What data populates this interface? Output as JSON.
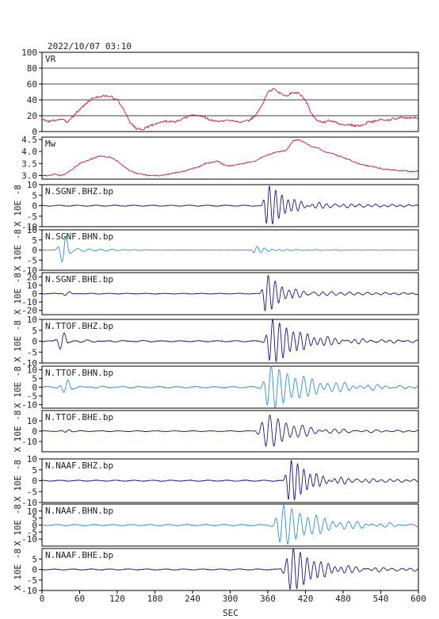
{
  "page_title": "2022/10/07 03:10",
  "x_axis": {
    "label": "SEC",
    "range": [
      0,
      600
    ],
    "ticks": [
      0,
      60,
      120,
      180,
      240,
      300,
      360,
      420,
      480,
      540,
      600
    ],
    "tick_labels": [
      "0",
      "60",
      "120",
      "180",
      "240",
      "300",
      "360",
      "420",
      "480",
      "540",
      "600"
    ]
  },
  "colors": {
    "vr": "#cc1144",
    "mw": "#cc1144",
    "z": "#15157a",
    "n": "#2f8fd0",
    "e": "#15157a"
  },
  "chart_data": [
    {
      "type": "line",
      "label": "VR",
      "ylim": [
        0,
        100
      ],
      "yticks": [
        0,
        20,
        40,
        60,
        80,
        100
      ],
      "ytick_labels": [
        "0",
        "20",
        "40",
        "60",
        "80",
        "100"
      ],
      "grid": true,
      "series": [
        {
          "x": [
            0,
            10,
            20,
            30,
            40,
            50,
            60,
            70,
            80,
            90,
            100,
            110,
            120,
            130,
            140,
            150,
            160,
            170,
            180,
            190,
            200,
            210,
            220,
            230,
            240,
            250,
            260,
            270,
            280,
            290,
            300,
            310,
            320,
            330,
            340,
            350,
            360,
            370,
            380,
            390,
            400,
            410,
            420,
            430,
            440,
            450,
            460,
            470,
            480,
            490,
            500,
            510,
            520,
            530,
            540,
            550,
            560,
            570,
            580,
            590,
            600
          ],
          "y": [
            15,
            13,
            14,
            16,
            12,
            20,
            28,
            35,
            42,
            44,
            45,
            44,
            40,
            28,
            12,
            4,
            3,
            6,
            10,
            12,
            13,
            12,
            14,
            18,
            21,
            20,
            18,
            14,
            13,
            13,
            15,
            13,
            12,
            14,
            20,
            32,
            50,
            54,
            48,
            45,
            50,
            48,
            40,
            22,
            13,
            12,
            14,
            11,
            8,
            9,
            7,
            8,
            12,
            13,
            15,
            14,
            16,
            18,
            17,
            18,
            17
          ]
        }
      ]
    },
    {
      "type": "line",
      "label": "Mw",
      "ylim": [
        2.85,
        4.6
      ],
      "yticks": [
        3.0,
        3.5,
        4.0,
        4.5
      ],
      "ytick_labels": [
        "3.0",
        "3.5",
        "4.0",
        "4.5"
      ],
      "series": [
        {
          "x": [
            0,
            10,
            20,
            30,
            40,
            50,
            60,
            70,
            80,
            90,
            100,
            110,
            120,
            130,
            140,
            150,
            160,
            170,
            180,
            190,
            200,
            210,
            220,
            230,
            240,
            250,
            260,
            270,
            280,
            290,
            300,
            310,
            320,
            330,
            340,
            350,
            360,
            370,
            380,
            390,
            400,
            410,
            420,
            430,
            440,
            450,
            460,
            470,
            480,
            490,
            500,
            510,
            520,
            530,
            540,
            550,
            560,
            570,
            580,
            590,
            600
          ],
          "y": [
            3.0,
            3.0,
            3.05,
            3.0,
            3.1,
            3.3,
            3.5,
            3.6,
            3.7,
            3.8,
            3.8,
            3.75,
            3.6,
            3.4,
            3.2,
            3.1,
            3.05,
            3.0,
            3.0,
            3.0,
            3.05,
            3.1,
            3.15,
            3.2,
            3.3,
            3.35,
            3.5,
            3.55,
            3.6,
            3.45,
            3.4,
            3.45,
            3.5,
            3.55,
            3.6,
            3.75,
            3.85,
            3.95,
            4.0,
            4.05,
            4.45,
            4.5,
            4.35,
            4.2,
            4.15,
            4.0,
            3.95,
            3.85,
            3.75,
            3.65,
            3.55,
            3.45,
            3.4,
            3.35,
            3.3,
            3.25,
            3.25,
            3.2,
            3.2,
            3.15,
            3.2
          ]
        }
      ]
    },
    {
      "type": "line",
      "label": "N.SGNF.BHZ.bp",
      "ylim": [
        -10,
        10
      ],
      "yticks": [
        -10,
        -5,
        0,
        5,
        10
      ],
      "ytick_labels": [
        "-10",
        "-5",
        "0",
        "5",
        "10"
      ],
      "unit_label": "X 10E -8",
      "component": "z",
      "series": [
        {
          "x": [
            0,
            300,
            320,
            330,
            340,
            345,
            350,
            355,
            360,
            365,
            370,
            375,
            380,
            390,
            400,
            420,
            440,
            460,
            480,
            500,
            520,
            540,
            560,
            580,
            600
          ],
          "y": [
            0,
            0,
            -0.5,
            0.8,
            -2,
            -4,
            3,
            -10,
            8,
            10,
            -6,
            5,
            -3,
            2,
            -1.5,
            1,
            -1.5,
            1.5,
            -1,
            1,
            -0.6,
            0.6,
            -0.5,
            0.5,
            0
          ]
        }
      ],
      "wavelet": {
        "t0": 360,
        "amp": 10,
        "period": 10,
        "decay": 28,
        "pre": 6,
        "noise": 0.35,
        "early_t0": 40,
        "early_amp": 0
      }
    },
    {
      "type": "line",
      "label": "N.SGNF.BHN.bp",
      "ylim": [
        -10,
        10
      ],
      "yticks": [
        -10,
        -5,
        0,
        5,
        10
      ],
      "ytick_labels": [
        "-10",
        "-5",
        "0",
        "5",
        "10"
      ],
      "unit_label": "X 10E -8",
      "component": "n",
      "series": [
        {
          "x": [
            0,
            20,
            30,
            35,
            40,
            50,
            60,
            80,
            100,
            300,
            340,
            350,
            360,
            380,
            400,
            600
          ],
          "y": [
            0,
            0.5,
            2,
            6,
            -5,
            -1.5,
            1,
            0.4,
            0,
            0,
            2,
            -1.5,
            0.8,
            -0.3,
            0.2,
            0
          ]
        }
      ],
      "wavelet": {
        "t0": 340,
        "amp": 2,
        "period": 12,
        "decay": 18,
        "pre": 4,
        "noise": 0.1,
        "early_t0": 35,
        "early_amp": 7
      }
    },
    {
      "type": "line",
      "label": "N.SGNF.BHE.bp",
      "ylim": [
        -25,
        25
      ],
      "yticks": [
        -20,
        -10,
        0,
        10,
        20
      ],
      "ytick_labels": [
        "-20",
        "-10",
        "0",
        "10",
        "20"
      ],
      "unit_label": "X 10E -8",
      "component": "e",
      "series": [
        {
          "x": [
            0,
            30,
            40,
            300,
            340,
            350,
            355,
            360,
            365,
            370,
            380,
            400,
            420,
            440,
            460,
            480,
            500,
            520,
            540,
            560,
            580,
            600
          ],
          "y": [
            0,
            0.5,
            2,
            0,
            -3,
            -8,
            22,
            -18,
            25,
            -14,
            6,
            -3,
            2,
            -2,
            1.5,
            -1,
            1,
            -0.7,
            0.5,
            -0.4,
            0.3,
            0
          ]
        }
      ],
      "wavelet": {
        "t0": 358,
        "amp": 24,
        "period": 11,
        "decay": 22,
        "pre": 6,
        "noise": 0.6,
        "early_t0": 40,
        "early_amp": 2
      }
    },
    {
      "type": "line",
      "label": "N.TTOF.BHZ.bp",
      "ylim": [
        -10,
        10
      ],
      "yticks": [
        -10,
        -5,
        0,
        5,
        10
      ],
      "ytick_labels": [
        "-10",
        "-5",
        "0",
        "5",
        "10"
      ],
      "unit_label": "X 10E -8",
      "component": "z",
      "series": [
        {
          "x": [
            0,
            20,
            30,
            35,
            40,
            50,
            300,
            340,
            350,
            360,
            365,
            370,
            380,
            400,
            420,
            440,
            460,
            480,
            500,
            520,
            540,
            560,
            580,
            600
          ],
          "y": [
            0,
            1,
            3,
            -1.5,
            0.5,
            0,
            0,
            -2,
            8,
            -10,
            10,
            -7,
            5,
            -3,
            2,
            -2,
            1.8,
            -1.5,
            1.5,
            -1.2,
            1.1,
            -0.9,
            0.8,
            0
          ]
        }
      ],
      "wavelet": {
        "t0": 365,
        "amp": 10,
        "period": 11,
        "decay": 45,
        "pre": 7,
        "noise": 0.4,
        "early_t0": 32,
        "early_amp": 4
      }
    },
    {
      "type": "line",
      "label": "N.TTOF.BHN.bp",
      "ylim": [
        -12,
        12
      ],
      "yticks": [
        -10,
        -5,
        0,
        5,
        10
      ],
      "ytick_labels": [
        "-10",
        "-5",
        "0",
        "5",
        "10"
      ],
      "unit_label": "X 10E -8",
      "component": "n",
      "series": [
        {
          "x": [
            0,
            30,
            40,
            50,
            300,
            340,
            350,
            360,
            365,
            370,
            380,
            400,
            420,
            440,
            460,
            480,
            500,
            520,
            540,
            560,
            580,
            600
          ],
          "y": [
            0,
            1,
            -3,
            1,
            0,
            -3,
            4,
            -12,
            12,
            -9,
            6,
            -4,
            3,
            -3,
            2.5,
            -2.5,
            2,
            -2,
            2,
            -1.5,
            1.5,
            0
          ]
        }
      ],
      "wavelet": {
        "t0": 362,
        "amp": 12,
        "period": 13,
        "decay": 60,
        "pre": 8,
        "noise": 0.6,
        "early_t0": 38,
        "early_amp": 4
      }
    },
    {
      "type": "line",
      "label": "N.TTOF.BHE.bp",
      "ylim": [
        -20,
        20
      ],
      "yticks": [
        -10,
        0,
        10
      ],
      "ytick_labels": [
        "-10",
        "0",
        "10"
      ],
      "unit_label": "X 10E -8",
      "component": "e",
      "series": [
        {
          "x": [
            0,
            30,
            40,
            300,
            330,
            345,
            355,
            360,
            365,
            375,
            390,
            400,
            420,
            440,
            460,
            480,
            500,
            520,
            540,
            560,
            580,
            600
          ],
          "y": [
            0,
            0.5,
            1.5,
            0,
            -1,
            -3,
            14,
            -16,
            12,
            -10,
            8,
            -5,
            3,
            -2,
            1.5,
            -1,
            1,
            -0.8,
            0.6,
            -0.5,
            0.4,
            0
          ]
        }
      ],
      "wavelet": {
        "t0": 360,
        "amp": 16,
        "period": 13,
        "decay": 40,
        "pre": 12,
        "noise": 0.5,
        "early_t0": 40,
        "early_amp": 1.5
      }
    },
    {
      "type": "line",
      "label": "N.NAAF.BHZ.bp",
      "ylim": [
        -10,
        10
      ],
      "yticks": [
        -10,
        -5,
        0,
        5,
        10
      ],
      "ytick_labels": [
        "-10",
        "-5",
        "0",
        "5",
        "10"
      ],
      "unit_label": "X 10E -8",
      "component": "z",
      "series": [
        {
          "x": [
            0,
            300,
            340,
            360,
            380,
            390,
            395,
            400,
            410,
            420,
            440,
            460,
            480,
            500,
            520,
            540,
            560,
            580,
            600
          ],
          "y": [
            0,
            0,
            0.5,
            1,
            -2,
            -10,
            10,
            -5,
            4,
            -3,
            2,
            -1.5,
            1,
            -0.8,
            0.6,
            -0.5,
            0.4,
            -0.3,
            0
          ]
        }
      ],
      "wavelet": {
        "t0": 395,
        "amp": 10,
        "period": 10,
        "decay": 30,
        "pre": 6,
        "noise": 0.35,
        "early_t0": 40,
        "early_amp": 0
      }
    },
    {
      "type": "line",
      "label": "N.NAAF.BHN.bp",
      "ylim": [
        -15,
        15
      ],
      "yticks": [
        -10,
        -5,
        0,
        5,
        10
      ],
      "ytick_labels": [
        "-10",
        "-5",
        "0",
        "5",
        "10"
      ],
      "unit_label": "X 10E -8",
      "component": "n",
      "series": [
        {
          "x": [
            0,
            300,
            340,
            360,
            370,
            380,
            385,
            390,
            400,
            420,
            440,
            460,
            480,
            500,
            520,
            540,
            560,
            580,
            600
          ],
          "y": [
            0,
            0,
            1,
            2,
            -2,
            10,
            -14,
            6,
            -4,
            3,
            -3,
            2.5,
            -2,
            2,
            -1.8,
            1.5,
            -1.2,
            1,
            0
          ]
        }
      ],
      "wavelet": {
        "t0": 382,
        "amp": 14,
        "period": 13,
        "decay": 55,
        "pre": 9,
        "noise": 0.7,
        "early_t0": 40,
        "early_amp": 0
      }
    },
    {
      "type": "line",
      "label": "N.NAAF.BHE.bp",
      "ylim": [
        -10,
        10
      ],
      "yticks": [
        -10,
        -5,
        0,
        5
      ],
      "ytick_labels": [
        "-10",
        "-5",
        "0",
        "5"
      ],
      "unit_label": "X 10E -8",
      "component": "e",
      "series": [
        {
          "x": [
            0,
            300,
            340,
            370,
            380,
            385,
            395,
            400,
            405,
            415,
            430,
            450,
            470,
            490,
            510,
            530,
            550,
            570,
            600
          ],
          "y": [
            0,
            0,
            0.8,
            -2,
            5,
            -6,
            8,
            -10,
            8,
            -5,
            4,
            -2,
            1.5,
            -1.2,
            1,
            -0.8,
            0.6,
            -0.5,
            0
          ]
        }
      ],
      "wavelet": {
        "t0": 398,
        "amp": 10,
        "period": 11,
        "decay": 40,
        "pre": 10,
        "noise": 0.35,
        "early_t0": 40,
        "early_amp": 0
      }
    }
  ]
}
